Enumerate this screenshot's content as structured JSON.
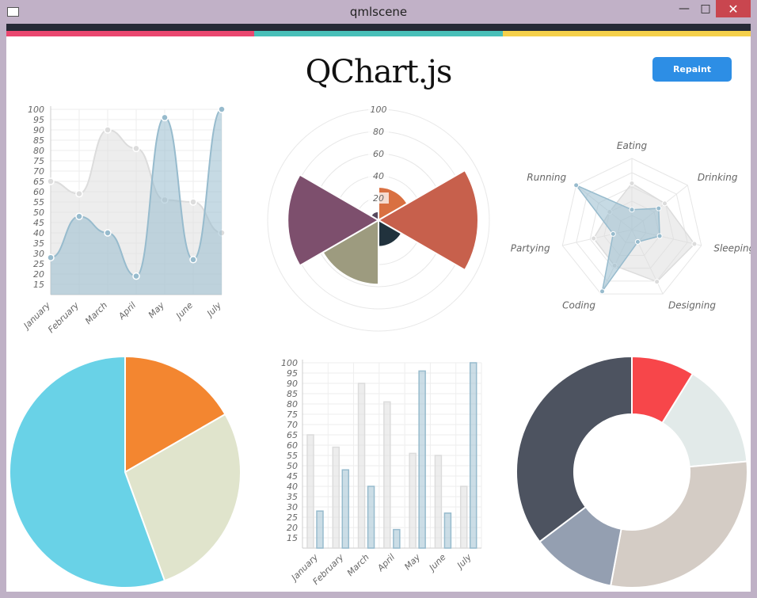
{
  "window": {
    "title": "qmlscene"
  },
  "header": {
    "title": "QChart.js",
    "repaint_label": "Repaint"
  },
  "colors": {
    "topbar": "#262a36",
    "stripe_pink": "#e9476f",
    "stripe_teal": "#48bfb8",
    "stripe_yellow": "#f5d04b",
    "button": "#2d8ee5"
  },
  "chart_data": [
    {
      "type": "area",
      "categories": [
        "January",
        "February",
        "March",
        "April",
        "May",
        "June",
        "July"
      ],
      "series": [
        {
          "values": [
            65,
            59,
            90,
            81,
            56,
            55,
            40
          ],
          "color": "#dcdcdc"
        },
        {
          "values": [
            28,
            48,
            40,
            19,
            96,
            27,
            100
          ],
          "color": "#97bbcd"
        }
      ],
      "y_ticks": [
        15,
        20,
        25,
        30,
        35,
        40,
        45,
        50,
        55,
        60,
        65,
        70,
        75,
        80,
        85,
        90,
        95,
        100
      ],
      "ylim": [
        10,
        100
      ],
      "grid": true
    },
    {
      "type": "polar-area",
      "scale_ticks": [
        20,
        40,
        60,
        80,
        100
      ],
      "ylim": [
        0,
        100
      ],
      "segments": [
        {
          "value": 30,
          "color": "#d97041"
        },
        {
          "value": 90,
          "color": "#c7604c"
        },
        {
          "value": 24,
          "color": "#21323d"
        },
        {
          "value": 58,
          "color": "#9d9b7f"
        },
        {
          "value": 82,
          "color": "#7d4f6d"
        },
        {
          "value": 8,
          "color": "#584a5e"
        }
      ]
    },
    {
      "type": "radar",
      "labels": [
        "Eating",
        "Drinking",
        "Sleeping",
        "Designing",
        "Coding",
        "Partying",
        "Running"
      ],
      "ylim": [
        0,
        100
      ],
      "series": [
        {
          "values": [
            65,
            59,
            90,
            81,
            56,
            55,
            40
          ],
          "color": "#dcdcdc"
        },
        {
          "values": [
            28,
            48,
            40,
            19,
            96,
            27,
            100
          ],
          "color": "#97bbcd"
        }
      ]
    },
    {
      "type": "pie",
      "segments": [
        {
          "value": 30,
          "color": "#f38630"
        },
        {
          "value": 50,
          "color": "#e0e4cc"
        },
        {
          "value": 100,
          "color": "#69d2e7"
        }
      ]
    },
    {
      "type": "bar",
      "categories": [
        "January",
        "February",
        "March",
        "April",
        "May",
        "June",
        "July"
      ],
      "series": [
        {
          "values": [
            65,
            59,
            90,
            81,
            56,
            55,
            40
          ],
          "color": "#dcdcdc"
        },
        {
          "values": [
            28,
            48,
            40,
            19,
            96,
            27,
            100
          ],
          "color": "#97bbcd"
        }
      ],
      "y_ticks": [
        15,
        20,
        25,
        30,
        35,
        40,
        45,
        50,
        55,
        60,
        65,
        70,
        75,
        80,
        85,
        90,
        95,
        100
      ],
      "ylim": [
        10,
        100
      ],
      "grid": true
    },
    {
      "type": "doughnut",
      "segments": [
        {
          "value": 30,
          "color": "#f7464a"
        },
        {
          "value": 50,
          "color": "#e2eae9"
        },
        {
          "value": 100,
          "color": "#d4ccc5"
        },
        {
          "value": 40,
          "color": "#949fb1"
        },
        {
          "value": 120,
          "color": "#4d5360"
        }
      ]
    }
  ]
}
